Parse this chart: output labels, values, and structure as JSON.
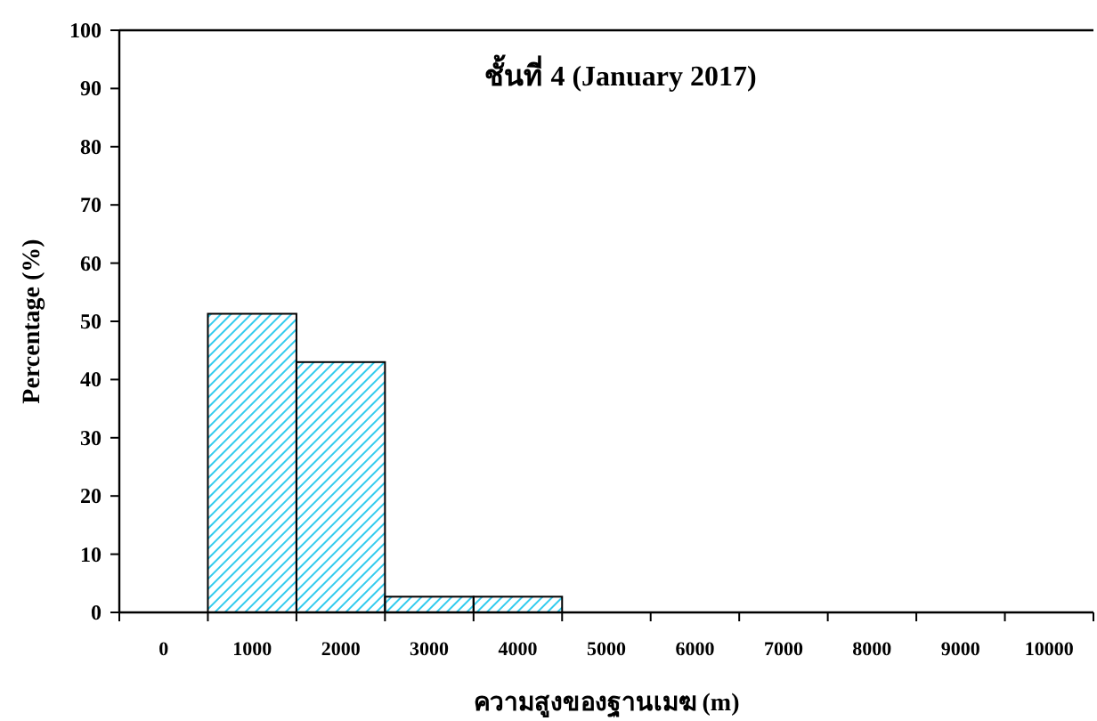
{
  "chart_data": {
    "type": "bar",
    "title": "ชั้นที่ 4 (January 2017)",
    "xlabel": "ความสูงของฐานเมฆ (m)",
    "ylabel": "Percentage (%)",
    "categories": [
      "0",
      "1000",
      "2000",
      "3000",
      "4000",
      "5000",
      "6000",
      "7000",
      "8000",
      "9000",
      "10000"
    ],
    "values": [
      0,
      51.3,
      43,
      2.7,
      2.7,
      0,
      0,
      0,
      0,
      0,
      0
    ],
    "color": "#33ccee",
    "ylim": [
      0,
      100
    ],
    "yticks": [
      0,
      10,
      20,
      30,
      40,
      50,
      60,
      70,
      80,
      90,
      100
    ],
    "grid": false
  }
}
